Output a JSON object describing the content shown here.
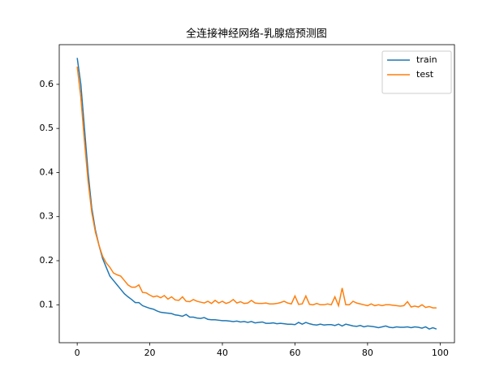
{
  "chart_data": {
    "type": "line",
    "title": "全连接神经网络-乳腺癌预测图",
    "x": [
      0,
      1,
      2,
      3,
      4,
      5,
      6,
      7,
      8,
      9,
      10,
      11,
      12,
      13,
      14,
      15,
      16,
      17,
      18,
      19,
      20,
      21,
      22,
      23,
      24,
      25,
      26,
      27,
      28,
      29,
      30,
      31,
      32,
      33,
      34,
      35,
      36,
      37,
      38,
      39,
      40,
      41,
      42,
      43,
      44,
      45,
      46,
      47,
      48,
      49,
      50,
      51,
      52,
      53,
      54,
      55,
      56,
      57,
      58,
      59,
      60,
      61,
      62,
      63,
      64,
      65,
      66,
      67,
      68,
      69,
      70,
      71,
      72,
      73,
      74,
      75,
      76,
      77,
      78,
      79,
      80,
      81,
      82,
      83,
      84,
      85,
      86,
      87,
      88,
      89,
      90,
      91,
      92,
      93,
      94,
      95,
      96,
      97,
      98,
      99
    ],
    "series": [
      {
        "name": "train",
        "color": "#1f77b4",
        "values": [
          0.66,
          0.6,
          0.5,
          0.4,
          0.32,
          0.27,
          0.235,
          0.205,
          0.185,
          0.165,
          0.155,
          0.145,
          0.135,
          0.125,
          0.118,
          0.112,
          0.105,
          0.105,
          0.098,
          0.095,
          0.092,
          0.09,
          0.086,
          0.083,
          0.082,
          0.081,
          0.08,
          0.077,
          0.076,
          0.074,
          0.078,
          0.072,
          0.072,
          0.07,
          0.069,
          0.071,
          0.067,
          0.066,
          0.066,
          0.065,
          0.064,
          0.064,
          0.063,
          0.062,
          0.063,
          0.061,
          0.062,
          0.06,
          0.062,
          0.059,
          0.06,
          0.061,
          0.058,
          0.058,
          0.059,
          0.057,
          0.058,
          0.057,
          0.056,
          0.056,
          0.055,
          0.06,
          0.056,
          0.06,
          0.057,
          0.055,
          0.054,
          0.056,
          0.054,
          0.055,
          0.055,
          0.053,
          0.056,
          0.052,
          0.056,
          0.054,
          0.052,
          0.051,
          0.053,
          0.05,
          0.052,
          0.051,
          0.05,
          0.048,
          0.05,
          0.052,
          0.049,
          0.048,
          0.05,
          0.049,
          0.049,
          0.05,
          0.048,
          0.05,
          0.049,
          0.047,
          0.05,
          0.045,
          0.048,
          0.045
        ]
      },
      {
        "name": "test",
        "color": "#ff7f0e",
        "values": [
          0.64,
          0.57,
          0.47,
          0.38,
          0.31,
          0.265,
          0.235,
          0.21,
          0.195,
          0.185,
          0.172,
          0.168,
          0.165,
          0.155,
          0.145,
          0.14,
          0.14,
          0.145,
          0.128,
          0.127,
          0.122,
          0.118,
          0.12,
          0.116,
          0.121,
          0.113,
          0.118,
          0.111,
          0.11,
          0.118,
          0.108,
          0.107,
          0.112,
          0.108,
          0.106,
          0.104,
          0.108,
          0.103,
          0.11,
          0.104,
          0.108,
          0.103,
          0.106,
          0.112,
          0.104,
          0.107,
          0.103,
          0.104,
          0.11,
          0.104,
          0.103,
          0.103,
          0.104,
          0.102,
          0.102,
          0.103,
          0.105,
          0.108,
          0.104,
          0.102,
          0.12,
          0.101,
          0.102,
          0.12,
          0.101,
          0.1,
          0.103,
          0.1,
          0.1,
          0.102,
          0.1,
          0.118,
          0.098,
          0.138,
          0.1,
          0.1,
          0.108,
          0.104,
          0.102,
          0.1,
          0.098,
          0.102,
          0.098,
          0.1,
          0.098,
          0.1,
          0.1,
          0.099,
          0.098,
          0.097,
          0.098,
          0.107,
          0.095,
          0.097,
          0.095,
          0.1,
          0.094,
          0.096,
          0.093,
          0.093
        ]
      }
    ],
    "xlim": [
      -4.95,
      103.95
    ],
    "xticks": [
      0,
      20,
      40,
      60,
      80,
      100
    ],
    "ylim": [
      0.014,
      0.69
    ],
    "yticks": [
      0.1,
      0.2,
      0.3,
      0.4,
      0.5,
      0.6
    ],
    "legend": "upper right"
  }
}
